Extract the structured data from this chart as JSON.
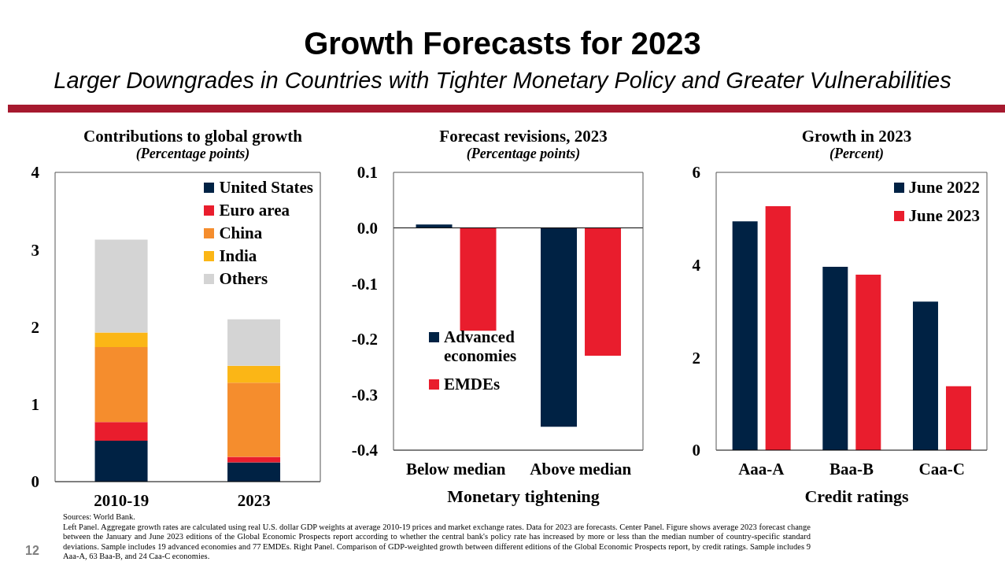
{
  "chart_data": [
    {
      "type": "other",
      "title": "Growth Forecasts for 2023",
      "subtitle": "Larger Downgrades in Countries with Tighter Monetary Policy and Greater Vulnerabilities"
    },
    {
      "type": "bar",
      "title": "Contributions to global growth",
      "subtitle": "(Percentage points)",
      "categories": [
        "2010-19",
        "2023"
      ],
      "stacked": true,
      "series": [
        {
          "name": "United States",
          "color": "#002244",
          "values": [
            0.53,
            0.25
          ]
        },
        {
          "name": "Euro area",
          "color": "#e91d2d",
          "values": [
            0.24,
            0.07
          ]
        },
        {
          "name": "China",
          "color": "#f58d2d",
          "values": [
            0.97,
            0.96
          ]
        },
        {
          "name": "India",
          "color": "#fbb616",
          "values": [
            0.19,
            0.22
          ]
        },
        {
          "name": "Others",
          "color": "#d4d4d4",
          "values": [
            1.2,
            0.6
          ]
        }
      ],
      "ylim": [
        0,
        4
      ],
      "yticks": [
        0,
        1,
        2,
        3,
        4
      ],
      "legend": "top right"
    },
    {
      "type": "bar",
      "title": "Forecast revisions, 2023",
      "subtitle": "(Percentage points)",
      "xlabel": "Monetary tightening",
      "categories": [
        "Below median",
        "Above median"
      ],
      "series": [
        {
          "name": "Advanced economies",
          "color": "#002244",
          "values": [
            0.006,
            -0.358
          ]
        },
        {
          "name": "EMDEs",
          "color": "#e91d2d",
          "values": [
            -0.185,
            -0.23
          ]
        }
      ],
      "ylim": [
        -0.4,
        0.1
      ],
      "yticks": [
        -0.4,
        -0.3,
        -0.2,
        -0.1,
        {
          "value": 0,
          "label": "0.0"
        },
        0.1
      ],
      "legend": "left"
    },
    {
      "type": "bar",
      "title": "Growth in 2023",
      "subtitle": "(Percent)",
      "xlabel": "Credit ratings",
      "categories": [
        "Aaa-A",
        "Baa-B",
        "Caa-C"
      ],
      "series": [
        {
          "name": "June 2022",
          "color": "#002244",
          "values": [
            4.94,
            3.96,
            3.21
          ]
        },
        {
          "name": "June 2023",
          "color": "#e91d2d",
          "values": [
            5.27,
            3.79,
            1.38
          ]
        }
      ],
      "ylim": [
        0,
        6
      ],
      "yticks": [
        0,
        2,
        4,
        6
      ],
      "legend": "top right"
    },
    {
      "type": "other",
      "annotations": [
        "12",
        "Sources: World Bank.",
        "Left Panel. Aggregate growth rates are calculated using real U.S. dollar GDP weights at average 2010-19 prices and market exchange rates. Data for 2023 are forecasts. Center Panel. Figure shows average 2023 forecast change between the January and June 2023 editions of the Global Economic Prospects report according to whether the central bank's policy rate has increased by more or less than the median number of country-specific standard deviations. Sample includes 19 advanced economies and 77 EMDEs. Right Panel. Comparison of GDP-weighted growth between different editions of the Global Economic Prospects report, by credit ratings. Sample includes 9 Aaa-A, 63 Baa-B, and 24 Caa-C economies."
      ]
    }
  ]
}
